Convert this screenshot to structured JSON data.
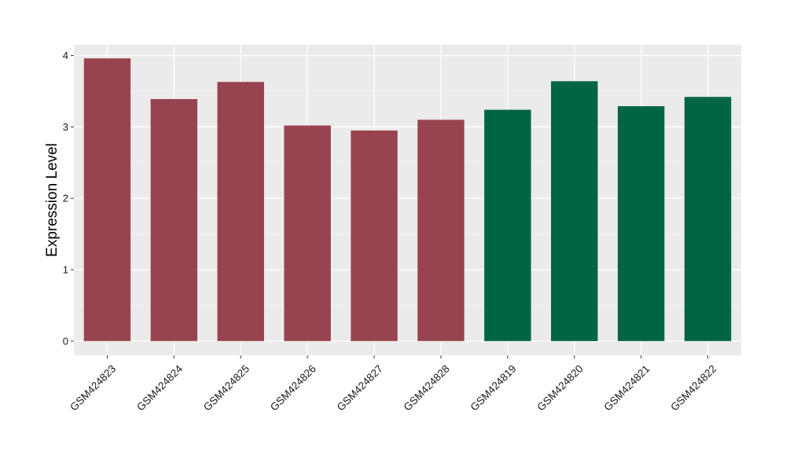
{
  "chart_data": {
    "type": "bar",
    "title": "",
    "xlabel": "",
    "ylabel": "Expression Level",
    "ylim": [
      -0.2,
      4.15
    ],
    "yticks": [
      0,
      1,
      2,
      3,
      4
    ],
    "ytick_labels": [
      "0",
      "1",
      "2",
      "3",
      "4"
    ],
    "grid": true,
    "legend": "none",
    "categories": [
      "GSM424823",
      "GSM424824",
      "GSM424825",
      "GSM424826",
      "GSM424827",
      "GSM424828",
      "GSM424819",
      "GSM424820",
      "GSM424821",
      "GSM424822"
    ],
    "values": [
      3.96,
      3.39,
      3.63,
      3.02,
      2.95,
      3.1,
      3.24,
      3.64,
      3.29,
      3.42
    ],
    "bar_colors": [
      "#984450",
      "#984450",
      "#984450",
      "#984450",
      "#984450",
      "#984450",
      "#006543",
      "#006543",
      "#006543",
      "#006543"
    ]
  },
  "colors": {
    "panel_background": "#EBEBEB",
    "major_grid": "#FFFFFF",
    "minor_grid": "#F5F5F5",
    "tick": "#333333"
  }
}
